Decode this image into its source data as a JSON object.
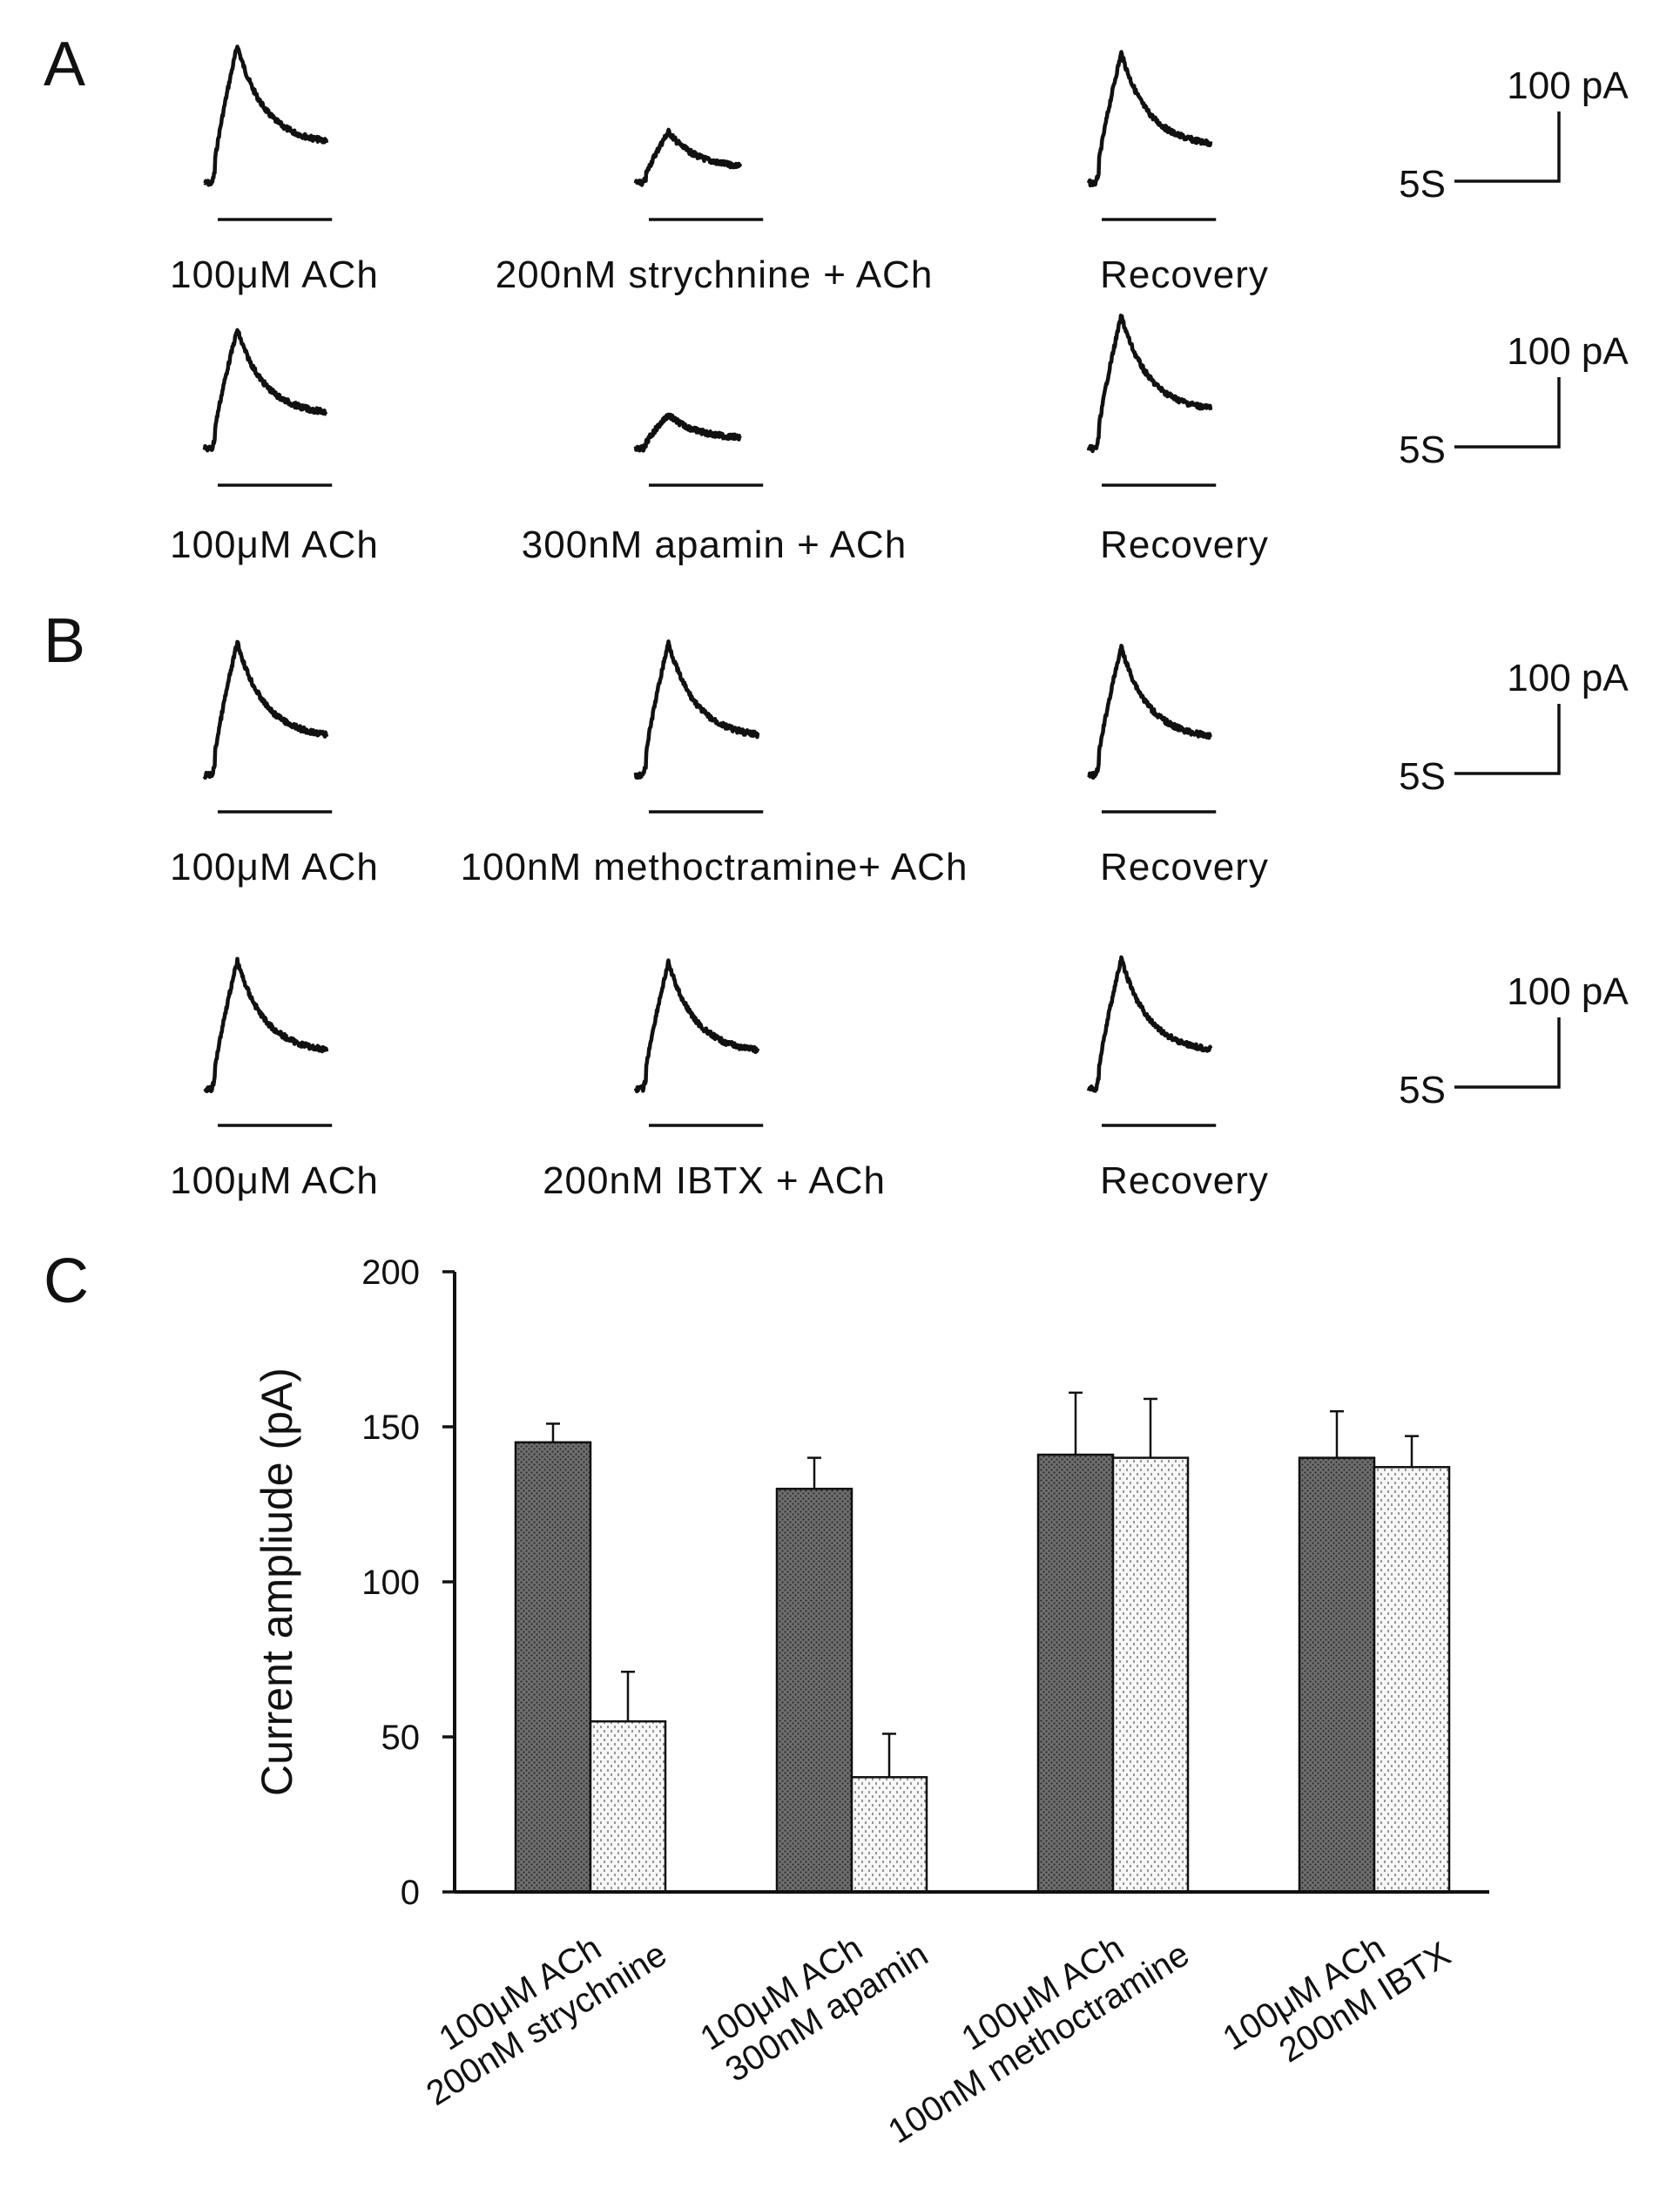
{
  "panels": {
    "A": "A",
    "B": "B",
    "C": "C"
  },
  "scale": {
    "current": "100 pA",
    "time": "5S"
  },
  "trace_rows": [
    {
      "labels": [
        "100μM ACh",
        "200nM strychnine + ACh",
        "Recovery"
      ],
      "peaks_pA": [
        150,
        56,
        142
      ]
    },
    {
      "labels": [
        "100μM ACh",
        "300nM apamin + ACh",
        "Recovery"
      ],
      "peaks_pA": [
        130,
        37,
        145
      ]
    },
    {
      "labels": [
        "100μM ACh",
        "100nM methoctramine+ ACh",
        "Recovery"
      ],
      "peaks_pA": [
        145,
        145,
        140
      ]
    },
    {
      "labels": [
        "100μM ACh",
        "200nM IBTX + ACh",
        "Recovery"
      ],
      "peaks_pA": [
        140,
        138,
        142
      ]
    }
  ],
  "chart_data": {
    "type": "bar",
    "title": "",
    "xlabel": "",
    "ylabel": "Current ampliude (pA)",
    "ylim": [
      0,
      200
    ],
    "yticks": [
      0,
      50,
      100,
      150,
      200
    ],
    "grid": false,
    "groups": [
      {
        "labels": [
          "100μM ACh",
          "200nM strychnine"
        ],
        "values": [
          145,
          55
        ],
        "errors": [
          6,
          16
        ]
      },
      {
        "labels": [
          "100μM ACh",
          "300nM apamin"
        ],
        "values": [
          130,
          37
        ],
        "errors": [
          10,
          14
        ]
      },
      {
        "labels": [
          "100μM ACh",
          "100nM methoctramine"
        ],
        "values": [
          141,
          140
        ],
        "errors": [
          20,
          19
        ]
      },
      {
        "labels": [
          "100μM ACh",
          "200nM IBTX"
        ],
        "values": [
          140,
          137
        ],
        "errors": [
          15,
          10
        ]
      }
    ],
    "colors": {
      "control": "#5a5a5a",
      "treatment": "#ececec"
    }
  }
}
